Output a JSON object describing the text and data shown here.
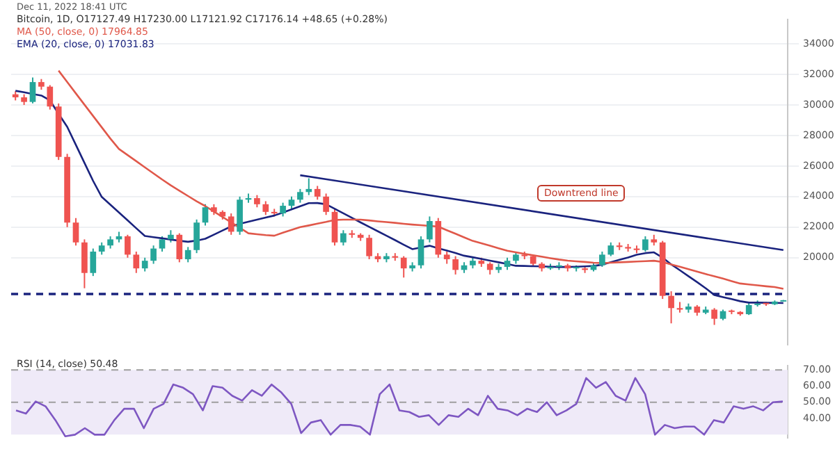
{
  "chart_data": [
    {
      "type": "candlestick",
      "title": "Bitcoin, 1D, O17127.49 H17230.00 L17121.92 C17176.14 +48.65 (+0.28%)",
      "categories": [
        null,
        null,
        null,
        null,
        null,
        null,
        null,
        null,
        null,
        null,
        null,
        null,
        null,
        null,
        null,
        null,
        null,
        null,
        null,
        null,
        null,
        null,
        null,
        null,
        null,
        null,
        null,
        null,
        null,
        null,
        null,
        null,
        null,
        null,
        null,
        null,
        null,
        null,
        null,
        null,
        null,
        null,
        null,
        null,
        null,
        null,
        null,
        null,
        null,
        null,
        null,
        null,
        null,
        null,
        null,
        null,
        null,
        null,
        null,
        null,
        null,
        null,
        null,
        null,
        null,
        null,
        null,
        null,
        null,
        null,
        null,
        null,
        null,
        null,
        null,
        null,
        null,
        null,
        null,
        null,
        null,
        null,
        null,
        null,
        null,
        null,
        null,
        null,
        null,
        null
      ],
      "ohlc": [
        [
          30700,
          30900,
          30300,
          30500
        ],
        [
          30500,
          30700,
          30000,
          30200
        ],
        [
          30200,
          31800,
          30100,
          31500
        ],
        [
          31500,
          31700,
          31000,
          31200
        ],
        [
          31200,
          31300,
          29700,
          29900
        ],
        [
          29900,
          30100,
          26400,
          26600
        ],
        [
          26600,
          26800,
          22000,
          22300
        ],
        [
          22300,
          22600,
          20800,
          21000
        ],
        [
          21000,
          21200,
          18000,
          19000
        ],
        [
          19000,
          20600,
          18800,
          20400
        ],
        [
          20400,
          21000,
          20200,
          20800
        ],
        [
          20800,
          21400,
          20600,
          21200
        ],
        [
          21200,
          21700,
          21000,
          21400
        ],
        [
          21400,
          21500,
          20000,
          20200
        ],
        [
          20200,
          20400,
          19000,
          19300
        ],
        [
          19300,
          20000,
          19100,
          19800
        ],
        [
          19800,
          20800,
          19600,
          20600
        ],
        [
          20600,
          21400,
          20400,
          21200
        ],
        [
          21200,
          21800,
          21000,
          21500
        ],
        [
          21500,
          21600,
          19700,
          19900
        ],
        [
          19900,
          20700,
          19700,
          20500
        ],
        [
          20500,
          22500,
          20300,
          22300
        ],
        [
          22300,
          23500,
          22100,
          23300
        ],
        [
          23300,
          23500,
          22800,
          23000
        ],
        [
          23000,
          23100,
          22500,
          22700
        ],
        [
          22700,
          22900,
          21500,
          21700
        ],
        [
          21700,
          24000,
          21500,
          23800
        ],
        [
          23800,
          24200,
          23600,
          23900
        ],
        [
          23900,
          24100,
          23300,
          23500
        ],
        [
          23500,
          23700,
          22800,
          23000
        ],
        [
          23000,
          23200,
          22700,
          22900
        ],
        [
          22900,
          23600,
          22700,
          23400
        ],
        [
          23400,
          24000,
          23200,
          23800
        ],
        [
          23800,
          24500,
          23600,
          24300
        ],
        [
          24300,
          25200,
          24100,
          24500
        ],
        [
          24500,
          24700,
          23800,
          24000
        ],
        [
          24000,
          24200,
          22800,
          23000
        ],
        [
          23000,
          23200,
          20800,
          21000
        ],
        [
          21000,
          21800,
          20800,
          21600
        ],
        [
          21600,
          21800,
          21300,
          21500
        ],
        [
          21500,
          21600,
          21100,
          21300
        ],
        [
          21300,
          21500,
          19900,
          20100
        ],
        [
          20100,
          20300,
          19700,
          19900
        ],
        [
          19900,
          20300,
          19700,
          20100
        ],
        [
          20100,
          20300,
          19800,
          20000
        ],
        [
          20000,
          20100,
          18700,
          19300
        ],
        [
          19300,
          19700,
          19100,
          19500
        ],
        [
          19500,
          21400,
          19300,
          21200
        ],
        [
          21200,
          22700,
          21000,
          22400
        ],
        [
          22400,
          22600,
          20000,
          20200
        ],
        [
          20200,
          20400,
          19600,
          19900
        ],
        [
          19900,
          20100,
          18900,
          19200
        ],
        [
          19200,
          19700,
          19000,
          19500
        ],
        [
          19500,
          20000,
          19300,
          19800
        ],
        [
          19800,
          20000,
          19400,
          19600
        ],
        [
          19600,
          19700,
          18900,
          19200
        ],
        [
          19200,
          19600,
          19000,
          19400
        ],
        [
          19400,
          20000,
          19200,
          19800
        ],
        [
          19800,
          20400,
          19600,
          20200
        ],
        [
          20200,
          20400,
          19900,
          20100
        ],
        [
          20100,
          20200,
          19400,
          19600
        ],
        [
          19600,
          19700,
          19100,
          19300
        ],
        [
          19300,
          19600,
          19200,
          19400
        ],
        [
          19400,
          19700,
          19200,
          19500
        ],
        [
          19500,
          19600,
          19100,
          19300
        ],
        [
          19300,
          19500,
          19100,
          19300
        ],
        [
          19300,
          19400,
          19000,
          19200
        ],
        [
          19200,
          19700,
          19100,
          19500
        ],
        [
          19500,
          20400,
          19400,
          20200
        ],
        [
          20200,
          21000,
          20100,
          20800
        ],
        [
          20800,
          21000,
          20500,
          20700
        ],
        [
          20700,
          20900,
          20400,
          20600
        ],
        [
          20600,
          20800,
          20300,
          20500
        ],
        [
          20500,
          21400,
          20400,
          21200
        ],
        [
          21200,
          21500,
          20800,
          21000
        ],
        [
          21000,
          21100,
          17300,
          17500
        ],
        [
          17500,
          17800,
          15700,
          16700
        ],
        [
          16700,
          17100,
          16400,
          16600
        ],
        [
          16600,
          17000,
          16400,
          16800
        ],
        [
          16800,
          16900,
          16200,
          16400
        ],
        [
          16400,
          16800,
          16300,
          16600
        ],
        [
          16600,
          16700,
          15600,
          16000
        ],
        [
          16000,
          16600,
          15900,
          16500
        ],
        [
          16500,
          16600,
          16300,
          16450
        ],
        [
          16450,
          16500,
          16200,
          16300
        ],
        [
          16300,
          17100,
          16250,
          16900
        ],
        [
          16900,
          17200,
          16800,
          17000
        ],
        [
          17000,
          17100,
          16850,
          16950
        ],
        [
          16950,
          17200,
          16900,
          17127.49
        ],
        [
          17127.49,
          17230,
          17121.92,
          17176.14
        ]
      ],
      "colors": [
        "#ef5350",
        "#ef5350",
        "#26a69a",
        "#ef5350",
        "#ef5350",
        "#ef5350",
        "#ef5350",
        "#ef5350",
        "#ef5350",
        "#26a69a",
        "#26a69a",
        "#26a69a",
        "#26a69a",
        "#ef5350",
        "#ef5350",
        "#26a69a",
        "#26a69a",
        "#26a69a",
        "#26a69a",
        "#ef5350",
        "#26a69a",
        "#26a69a",
        "#26a69a",
        "#ef5350",
        "#ef5350",
        "#ef5350",
        "#26a69a",
        "#26a69a",
        "#ef5350",
        "#ef5350",
        "#ef5350",
        "#26a69a",
        "#26a69a",
        "#26a69a",
        "#26a69a",
        "#ef5350",
        "#ef5350",
        "#ef5350",
        "#26a69a",
        "#ef5350",
        "#ef5350",
        "#ef5350",
        "#ef5350",
        "#26a69a",
        "#ef5350",
        "#ef5350",
        "#26a69a",
        "#26a69a",
        "#26a69a",
        "#ef5350",
        "#ef5350",
        "#ef5350",
        "#26a69a",
        "#26a69a",
        "#ef5350",
        "#ef5350",
        "#26a69a",
        "#26a69a",
        "#26a69a",
        "#ef5350",
        "#ef5350",
        "#ef5350",
        "#26a69a",
        "#26a69a",
        "#ef5350",
        "#26a69a",
        "#ef5350",
        "#26a69a",
        "#26a69a",
        "#26a69a",
        "#ef5350",
        "#ef5350",
        "#ef5350",
        "#26a69a",
        "#ef5350",
        "#ef5350",
        "#ef5350",
        "#ef5350",
        "#26a69a",
        "#ef5350",
        "#26a69a",
        "#ef5350",
        "#26a69a",
        "#ef5350",
        "#ef5350",
        "#26a69a",
        "#26a69a",
        "#ef5350",
        "#26a69a",
        "#26a69a"
      ],
      "series": [
        {
          "name": "MA (50, close, 0) 17964.85",
          "type": "line",
          "color": "#e0584a",
          "values": [
            null,
            null,
            null,
            null,
            null,
            32250,
            31500,
            30760,
            30020,
            29280,
            28540,
            27800,
            27120,
            26720,
            26320,
            25920,
            25520,
            25120,
            24740,
            24390,
            24040,
            23690,
            23380,
            23020,
            22670,
            22310,
            21960,
            21600,
            21540,
            21480,
            21440,
            21640,
            21820,
            22000,
            22110,
            22230,
            22340,
            22470,
            22490,
            22490,
            22490,
            22440,
            22380,
            22330,
            22280,
            22220,
            22170,
            22130,
            22080,
            22040,
            21800,
            21570,
            21330,
            21100,
            20940,
            20780,
            20620,
            20460,
            20350,
            20250,
            20160,
            20070,
            19970,
            19880,
            19810,
            19760,
            19720,
            19670,
            19650,
            19670,
            19700,
            19720,
            19750,
            19770,
            19800,
            19720,
            19560,
            19410,
            19250,
            19090,
            18930,
            18780,
            18630,
            18470,
            18310,
            18250,
            18190,
            18130,
            18080,
            17964.85
          ]
        },
        {
          "name": "EMA (20, close, 0) 17031.83",
          "type": "line",
          "color": "#1a237e",
          "values": [
            30930,
            30830,
            30720,
            30620,
            30300,
            29420,
            28570,
            27390,
            26210,
            25030,
            23980,
            23470,
            22960,
            22450,
            21930,
            21420,
            21340,
            21270,
            21190,
            21110,
            21040,
            21120,
            21240,
            21510,
            21780,
            22050,
            22220,
            22360,
            22490,
            22630,
            22760,
            22960,
            23160,
            23370,
            23570,
            23580,
            23500,
            23200,
            22910,
            22610,
            22310,
            22020,
            21730,
            21440,
            21150,
            20850,
            20560,
            20670,
            20780,
            20620,
            20470,
            20310,
            20130,
            20030,
            19920,
            19810,
            19700,
            19590,
            19470,
            19460,
            19440,
            19430,
            19410,
            19390,
            19390,
            19410,
            19430,
            19460,
            19540,
            19700,
            19860,
            20010,
            20190,
            20300,
            20350,
            20010,
            19560,
            19180,
            18790,
            18400,
            18000,
            17560,
            17420,
            17290,
            17150,
            17060,
            17060,
            17050,
            17040,
            17031.83
          ]
        },
        {
          "type": "line",
          "color": "#1a237e",
          "values": [
            null,
            null,
            null,
            null,
            null,
            null,
            null,
            null,
            null,
            null,
            null,
            null,
            null,
            null,
            null,
            null,
            null,
            null,
            null,
            null,
            null,
            null,
            null,
            null,
            null,
            null,
            null,
            null,
            null,
            null,
            null,
            null,
            null,
            25400,
            null,
            null,
            null,
            null,
            null,
            null,
            null,
            null,
            null,
            null,
            null,
            null,
            null,
            null,
            null,
            null,
            null,
            null,
            null,
            null,
            null,
            null,
            null,
            null,
            null,
            null,
            null,
            null,
            null,
            null,
            null,
            null,
            null,
            null,
            null,
            null,
            null,
            null,
            null,
            null,
            null,
            null,
            null,
            null,
            null,
            null,
            null,
            null,
            null,
            null,
            null,
            null,
            null,
            null,
            null,
            20500
          ]
        }
      ],
      "ylim": [
        14300,
        35600
      ],
      "yticks": [
        20000,
        22000,
        24000,
        26000,
        28000,
        30000,
        32000,
        34000
      ],
      "grid": "y",
      "legend": "top left",
      "tick_labels": "y",
      "marker": "none",
      "ref_lines": [
        {
          "axis": "y",
          "value": 17620,
          "color": "#1a237e",
          "line_style": "dashed"
        }
      ],
      "annotations": [
        "Dec 11, 2022 18:41 UTC",
        "Downtrend line"
      ]
    },
    {
      "type": "line",
      "title": "RSI (14, close) 50.48",
      "categories": [
        null,
        null,
        null,
        null,
        null,
        null,
        null,
        null,
        null,
        null,
        null,
        null,
        null,
        null,
        null,
        null,
        null,
        null,
        null,
        null,
        null,
        null,
        null,
        null,
        null,
        null,
        null,
        null,
        null,
        null,
        null,
        null,
        null,
        null,
        null,
        null,
        null,
        null,
        null,
        null,
        null,
        null,
        null,
        null,
        null,
        null,
        null,
        null,
        null,
        null,
        null,
        null,
        null,
        null,
        null,
        null,
        null,
        null,
        null,
        null,
        null,
        null,
        null,
        null,
        null,
        null,
        null,
        null,
        null,
        null,
        null,
        null,
        null,
        null,
        null,
        null,
        null,
        null,
        null
      ],
      "series": [
        {
          "color": "#7e57c2",
          "values": [
            45,
            43,
            50.5,
            47.5,
            39,
            29,
            30,
            34,
            30,
            30,
            39,
            46,
            46,
            34,
            46,
            49,
            61,
            59,
            55,
            45,
            60,
            59,
            54,
            51,
            57.5,
            54,
            61,
            56,
            49,
            31,
            37.5,
            39,
            30,
            36,
            36,
            35,
            30,
            55,
            61,
            45,
            44,
            41,
            42,
            36,
            42,
            41,
            46,
            42,
            54,
            46,
            45,
            42,
            46,
            44,
            50,
            42,
            45,
            49,
            65,
            59,
            62.5,
            54,
            51,
            65,
            55,
            30,
            36,
            34,
            35,
            35,
            30,
            39,
            37.5,
            47.5,
            46,
            47.5,
            45,
            50,
            50.48
          ]
        }
      ],
      "ylim": [
        28,
        72.5
      ],
      "yticks": [
        {
          "value": 40,
          "label": "40.00"
        },
        {
          "value": 50,
          "label": "50.00"
        },
        {
          "value": 60,
          "label": "60.00"
        },
        {
          "value": 70,
          "label": "70.00"
        }
      ],
      "tick_labels": "y",
      "marker": "none",
      "bands": [
        {
          "axis": "y",
          "from": 30,
          "to": 70,
          "color": "#efeaf8"
        }
      ],
      "ref_lines": [
        {
          "axis": "y",
          "value": 70,
          "color": "#9e9e9e",
          "line_style": "dashed"
        },
        {
          "axis": "y",
          "value": 50,
          "color": "#9e9e9e",
          "line_style": "dashed"
        }
      ]
    }
  ]
}
